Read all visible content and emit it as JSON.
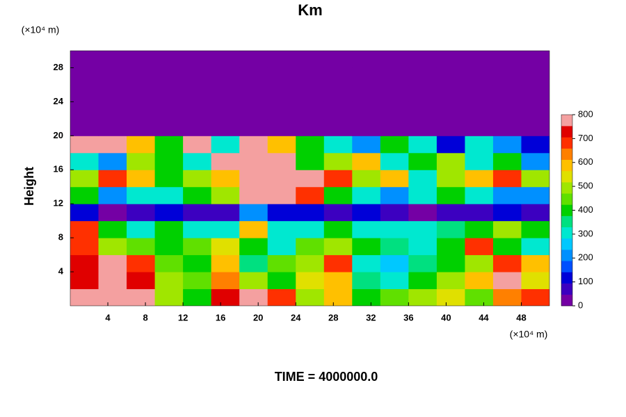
{
  "chart_data": {
    "type": "heatmap",
    "title": "Km",
    "y_label": "Height",
    "x_unit": "(×10⁴ m)",
    "y_unit": "(×10⁴ m)",
    "footer": "TIME = 4000000.0",
    "xlim": [
      0,
      51
    ],
    "ylim": [
      0,
      30
    ],
    "xticks": [
      4,
      8,
      12,
      16,
      20,
      24,
      28,
      32,
      36,
      40,
      44,
      48
    ],
    "yticks": [
      4,
      8,
      12,
      16,
      20,
      24,
      28
    ],
    "x_edges": [
      0,
      3,
      6,
      9,
      12,
      15,
      18,
      21,
      24,
      27,
      30,
      33,
      36,
      39,
      42,
      45,
      48,
      51
    ],
    "y_edges": [
      0,
      2,
      4,
      6,
      8,
      10,
      12,
      14,
      16,
      18,
      20,
      22,
      24,
      26,
      28,
      30
    ],
    "levels": [
      0,
      50,
      100,
      150,
      200,
      250,
      300,
      350,
      400,
      450,
      500,
      550,
      600,
      650,
      700,
      750,
      800
    ],
    "colors": [
      "#7400a4",
      "#3c00c0",
      "#0000d8",
      "#0050ff",
      "#0090ff",
      "#00c8ff",
      "#00e8d0",
      "#00e080",
      "#00d000",
      "#60e000",
      "#a0e600",
      "#e0e000",
      "#ffc000",
      "#ff8000",
      "#ff3000",
      "#e00000",
      "#f4a0a0"
    ],
    "colorbar_ticks": [
      0,
      100,
      200,
      300,
      400,
      500,
      600,
      700,
      800
    ],
    "z": [
      [
        800,
        800,
        800,
        500,
        400,
        750,
        800,
        700,
        500,
        600,
        400,
        450,
        500,
        550,
        450,
        650,
        700
      ],
      [
        750,
        800,
        750,
        500,
        450,
        650,
        500,
        400,
        550,
        600,
        350,
        300,
        400,
        500,
        600,
        800,
        550
      ],
      [
        750,
        800,
        700,
        450,
        400,
        600,
        350,
        450,
        500,
        700,
        300,
        250,
        350,
        400,
        500,
        700,
        600
      ],
      [
        700,
        500,
        450,
        400,
        450,
        550,
        400,
        300,
        450,
        500,
        400,
        350,
        300,
        400,
        700,
        400,
        300
      ],
      [
        700,
        400,
        300,
        400,
        300,
        300,
        600,
        300,
        300,
        400,
        300,
        300,
        300,
        350,
        400,
        500,
        400
      ],
      [
        100,
        0,
        50,
        100,
        50,
        50,
        200,
        100,
        100,
        50,
        100,
        50,
        0,
        50,
        50,
        100,
        50
      ],
      [
        400,
        200,
        300,
        300,
        400,
        500,
        800,
        800,
        700,
        400,
        300,
        200,
        300,
        400,
        300,
        200,
        200
      ],
      [
        500,
        700,
        600,
        400,
        500,
        600,
        800,
        800,
        800,
        700,
        500,
        600,
        300,
        500,
        600,
        700,
        500
      ],
      [
        300,
        200,
        500,
        400,
        300,
        800,
        800,
        800,
        400,
        500,
        600,
        300,
        400,
        500,
        300,
        400,
        200
      ],
      [
        800,
        800,
        600,
        400,
        800,
        300,
        800,
        600,
        400,
        300,
        200,
        400,
        300,
        100,
        300,
        200,
        100
      ],
      [
        0,
        0,
        0,
        0,
        0,
        0,
        0,
        0,
        0,
        0,
        0,
        0,
        0,
        0,
        0,
        0,
        0
      ],
      [
        0,
        0,
        0,
        0,
        0,
        0,
        0,
        0,
        0,
        0,
        0,
        0,
        0,
        0,
        0,
        0,
        0
      ],
      [
        0,
        0,
        0,
        0,
        0,
        0,
        0,
        0,
        0,
        0,
        0,
        0,
        0,
        0,
        0,
        0,
        0
      ],
      [
        0,
        0,
        0,
        0,
        0,
        0,
        0,
        0,
        0,
        0,
        0,
        0,
        0,
        0,
        0,
        0,
        0
      ],
      [
        0,
        0,
        0,
        0,
        0,
        0,
        0,
        0,
        0,
        0,
        0,
        0,
        0,
        0,
        0,
        0,
        0
      ]
    ]
  }
}
